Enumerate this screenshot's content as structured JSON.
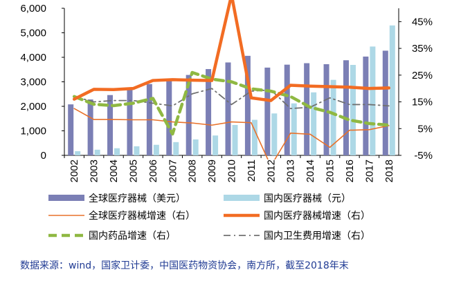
{
  "chart_data": {
    "type": "bar+line",
    "categories": [
      "2002",
      "2003",
      "2004",
      "2005",
      "2006",
      "2007",
      "2008",
      "2009",
      "2010",
      "2011",
      "2012",
      "2013",
      "2014",
      "2015",
      "2016",
      "2017",
      "2018"
    ],
    "left_axis": {
      "ylim": [
        0,
        6000
      ],
      "ticks": [
        "0",
        "1,000",
        "2,000",
        "3,000",
        "4,000",
        "5,000",
        "6,000"
      ],
      "tick_values": [
        0,
        1000,
        2000,
        3000,
        4000,
        5000,
        6000
      ]
    },
    "right_axis": {
      "ylim": [
        -5,
        50
      ],
      "ticks": [
        "-5%",
        "5%",
        "15%",
        "25%",
        "35%",
        "45%"
      ],
      "tick_values": [
        -5,
        5,
        15,
        25,
        35,
        45
      ]
    },
    "bar_series": [
      {
        "name": "全球医疗器械（美元）",
        "color": "#7b7fb5",
        "values": [
          2080,
          2280,
          2460,
          2700,
          2910,
          3040,
          3280,
          3520,
          3790,
          4060,
          3580,
          3700,
          3760,
          3720,
          3880,
          4030,
          4270
        ]
      },
      {
        "name": "国内医疗器械（元）",
        "color": "#add8e6",
        "values": [
          170,
          230,
          290,
          370,
          430,
          540,
          650,
          810,
          1240,
          1450,
          1710,
          2120,
          2570,
          3080,
          3690,
          4440,
          5300
        ]
      }
    ],
    "line_series": [
      {
        "name": "全球医疗器械增速（右）",
        "color": "#e8712a",
        "style": "thin",
        "values": [
          12.5,
          8.4,
          8.4,
          8.3,
          8.3,
          7.5,
          7.1,
          6.3,
          7.5,
          7.2,
          -9,
          3.3,
          2.9,
          -2,
          4.4,
          4.6,
          6.1
        ]
      },
      {
        "name": "国内医疗器械增速（右）",
        "color": "#f26c23",
        "style": "thick",
        "values": [
          16,
          19.7,
          19.6,
          20,
          23,
          23.3,
          23.1,
          23,
          55,
          16.5,
          15.5,
          21.2,
          20.9,
          20.7,
          20.5,
          20,
          20.2
        ]
      },
      {
        "name": "国内药品增速（右）",
        "color": "#8fb842",
        "style": "dashed",
        "values": [
          17,
          14.1,
          13.6,
          14.5,
          16.3,
          3,
          26,
          23.5,
          22.5,
          19.9,
          19,
          17,
          13,
          11.1,
          8.2,
          6.9,
          6.3
        ]
      },
      {
        "name": "国内卫生费用增速（右）",
        "color": "#707070",
        "style": "dashdot",
        "values": [
          17,
          15,
          15.5,
          15.5,
          14.5,
          13.5,
          18,
          20,
          14,
          19,
          19.5,
          12.5,
          13,
          16.5,
          14,
          14,
          13.5
        ]
      }
    ]
  },
  "source_text": "数据来源：wind，国家卫计委，中国医药物资协会，南方所，截至2018年末"
}
